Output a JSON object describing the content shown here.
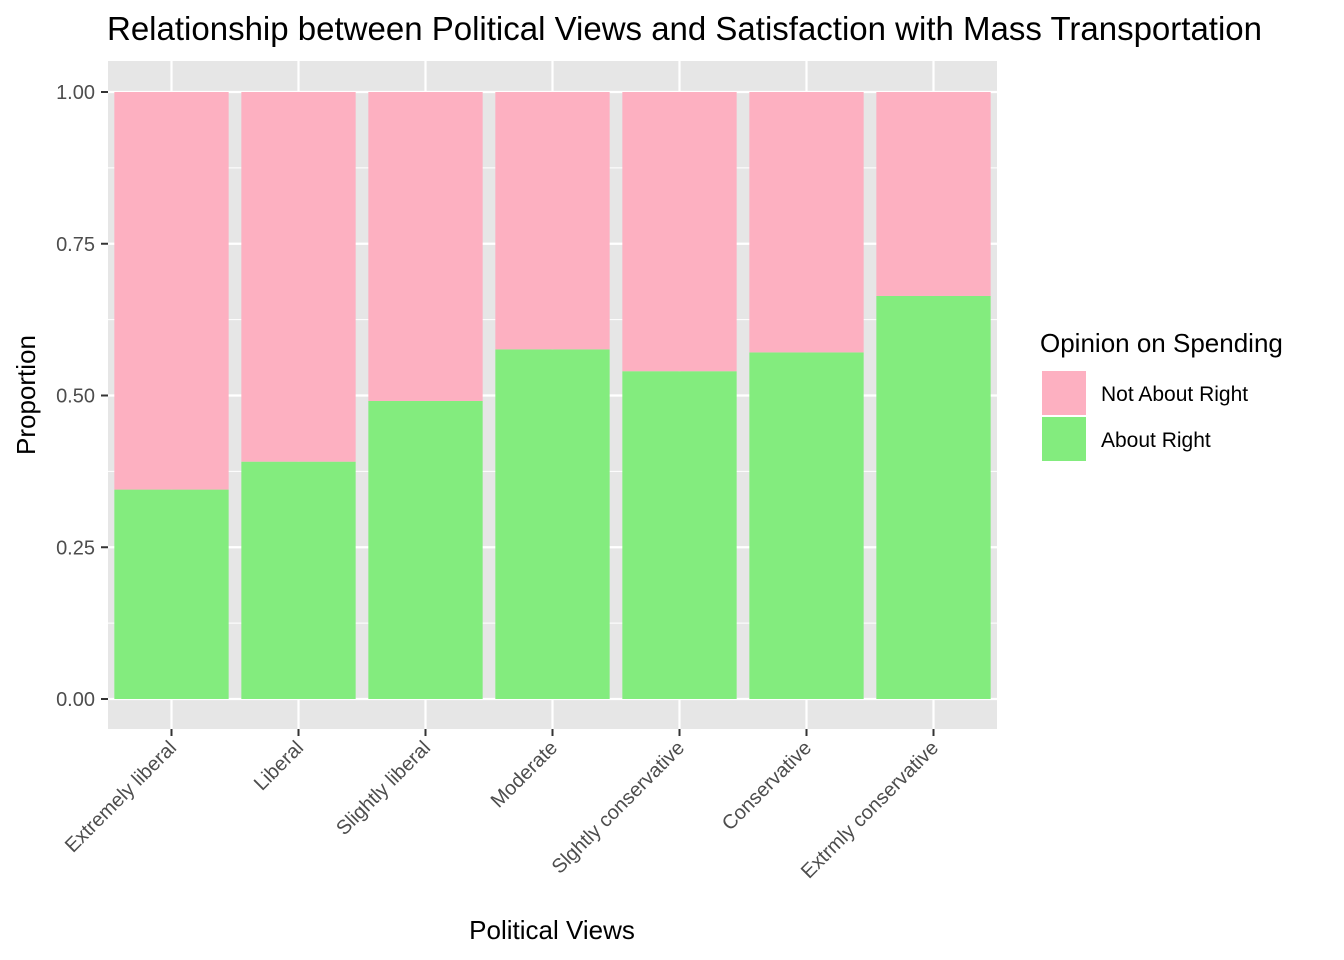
{
  "chart_data": {
    "type": "bar",
    "stacked": true,
    "title": "Relationship between Political Views and Satisfaction with Mass Transportation",
    "xlabel": "Political Views",
    "ylabel": "Proportion",
    "ylim": [
      0,
      1
    ],
    "yticks": [
      "0.00",
      "0.25",
      "0.50",
      "0.75",
      "1.00"
    ],
    "ytick_values": [
      0,
      0.25,
      0.5,
      0.75,
      1.0
    ],
    "grid": true,
    "categories": [
      "Extremely liberal",
      "Liberal",
      "Slightly liberal",
      "Moderate",
      "Slghtly conservative",
      "Conservative",
      "Extrmly conservative"
    ],
    "series": [
      {
        "name": "About Right",
        "color": "#83ec7e",
        "values": [
          0.345,
          0.391,
          0.491,
          0.576,
          0.54,
          0.571,
          0.664
        ]
      },
      {
        "name": "Not About Right",
        "color": "#fdb0c1",
        "values": [
          0.655,
          0.609,
          0.509,
          0.424,
          0.46,
          0.429,
          0.336
        ]
      }
    ],
    "legend": {
      "title": "Opinion on Spending",
      "position": "right",
      "order": [
        "Not About Right",
        "About Right"
      ]
    },
    "panel_background": "#e6e6e6"
  }
}
